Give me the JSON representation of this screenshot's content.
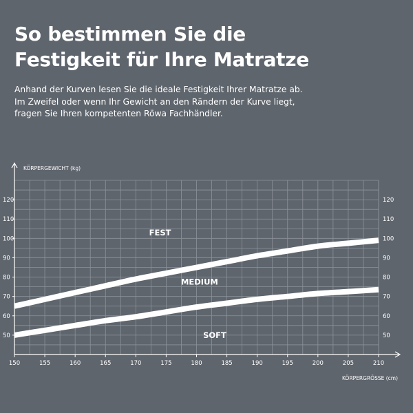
{
  "header": {
    "title_line1": "So bestimmen Sie die",
    "title_line2": "Festigkeit für Ihre Matratze",
    "intro_line1": "Anhand der Kurven lesen Sie die ideale Festigkeit Ihrer Matratze ab.",
    "intro_line2": "Im Zweifel oder wenn Ihr Gewicht an den Rändern der Kurve liegt,",
    "intro_line3": "fragen Sie Ihren kompetenten Röwa Fachhändler."
  },
  "colors": {
    "background": "#5f656d",
    "grid": "#8d939a",
    "curve": "#ffffff",
    "text": "#ffffff"
  },
  "chart_data": {
    "type": "line",
    "xlabel": "KÖRPERGRÖSSE (cm)",
    "ylabel": "KÖRPERGEWICHT (kg)",
    "xlim": [
      150,
      210
    ],
    "ylim": [
      40,
      130
    ],
    "x_ticks": [
      150,
      155,
      160,
      165,
      170,
      175,
      180,
      185,
      190,
      195,
      200,
      205,
      210
    ],
    "y_ticks": [
      50,
      60,
      70,
      80,
      90,
      100,
      110,
      120
    ],
    "y_ticks_right": true,
    "grid": true,
    "series": [
      {
        "name": "FEST",
        "x": [
          150,
          155,
          160,
          165,
          170,
          175,
          180,
          185,
          190,
          195,
          200,
          205,
          210
        ],
        "y": [
          65,
          68.5,
          72,
          75.5,
          79,
          82,
          85,
          88,
          91,
          93.5,
          96,
          97.5,
          99
        ]
      },
      {
        "name": "MEDIUM",
        "x": [
          150,
          155,
          160,
          165,
          170,
          175,
          180,
          185,
          190,
          195,
          200,
          205,
          210
        ],
        "y": [
          50,
          52.5,
          55,
          57.5,
          59.5,
          62,
          64.5,
          66.5,
          68.5,
          70,
          71.5,
          72.5,
          73.5
        ]
      }
    ],
    "annotations": [
      {
        "text": "FEST",
        "x": 174,
        "y": 103
      },
      {
        "text": "MEDIUM",
        "x": 180.5,
        "y": 77.5
      },
      {
        "text": "SOFT",
        "x": 183,
        "y": 50
      }
    ]
  }
}
